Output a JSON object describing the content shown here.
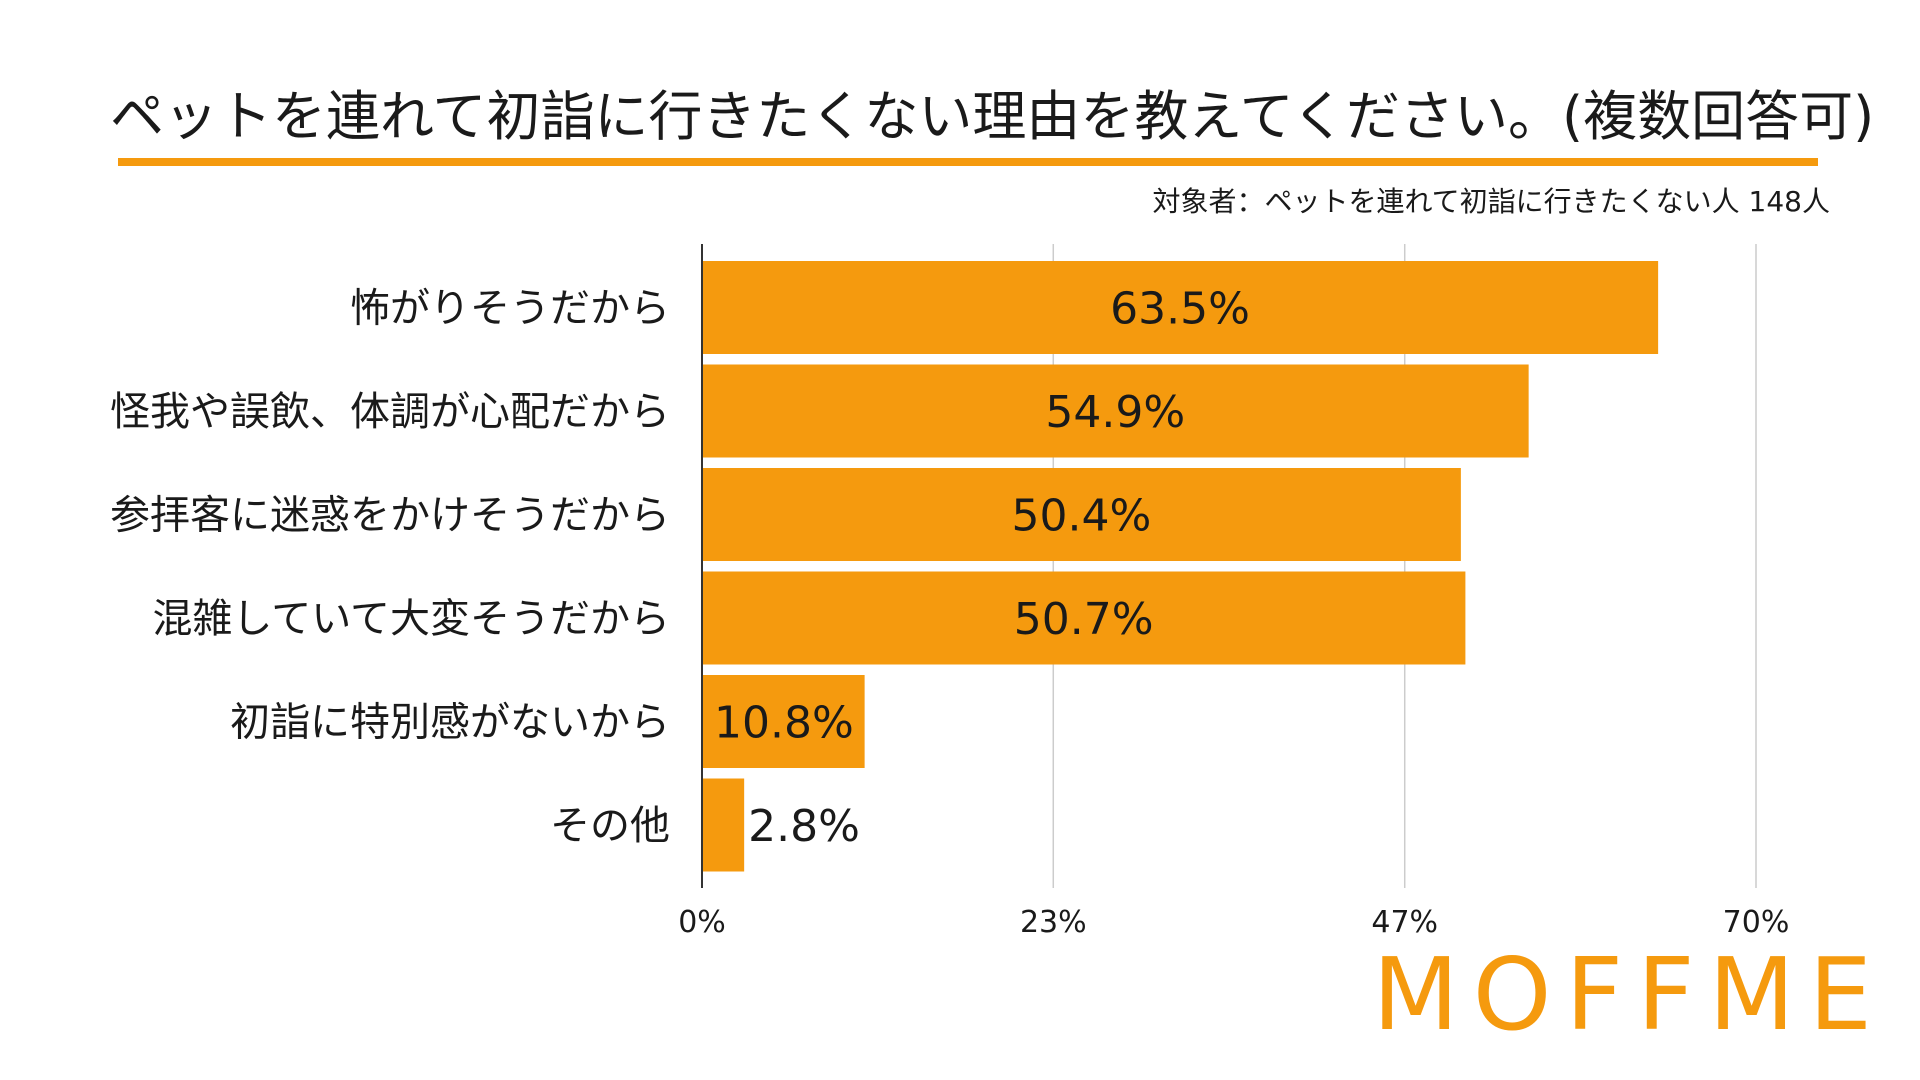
{
  "title": "ペットを連れて初詣に行きたくない理由を教えてください。(複数回答可)",
  "subtitle": "対象者：ペットを連れて初詣に行きたくない人 148人",
  "logo_text": "MOFFME",
  "colors": {
    "bar": "#f59a0e",
    "accent": "#f59a0e",
    "grid": "#cccccc",
    "axis": "#333333",
    "text": "#1a1a1a"
  },
  "chart_data": {
    "type": "bar",
    "orientation": "horizontal",
    "categories": [
      "怖がりそうだから",
      "怪我や誤飲、体調が心配だから",
      "参拝客に迷惑をかけそうだから",
      "混雑していて大変そうだから",
      "初詣に特別感がないから",
      "その他"
    ],
    "values": [
      63.5,
      54.9,
      50.4,
      50.7,
      10.8,
      2.8
    ],
    "value_labels": [
      "63.5%",
      "54.9%",
      "50.4%",
      "50.7%",
      "10.8%",
      "2.8%"
    ],
    "xlim": [
      0,
      70
    ],
    "ticks": [
      0,
      23.33,
      46.67,
      70
    ],
    "tick_labels": [
      "0%",
      "23%",
      "47%",
      "70%"
    ],
    "grid": true
  }
}
